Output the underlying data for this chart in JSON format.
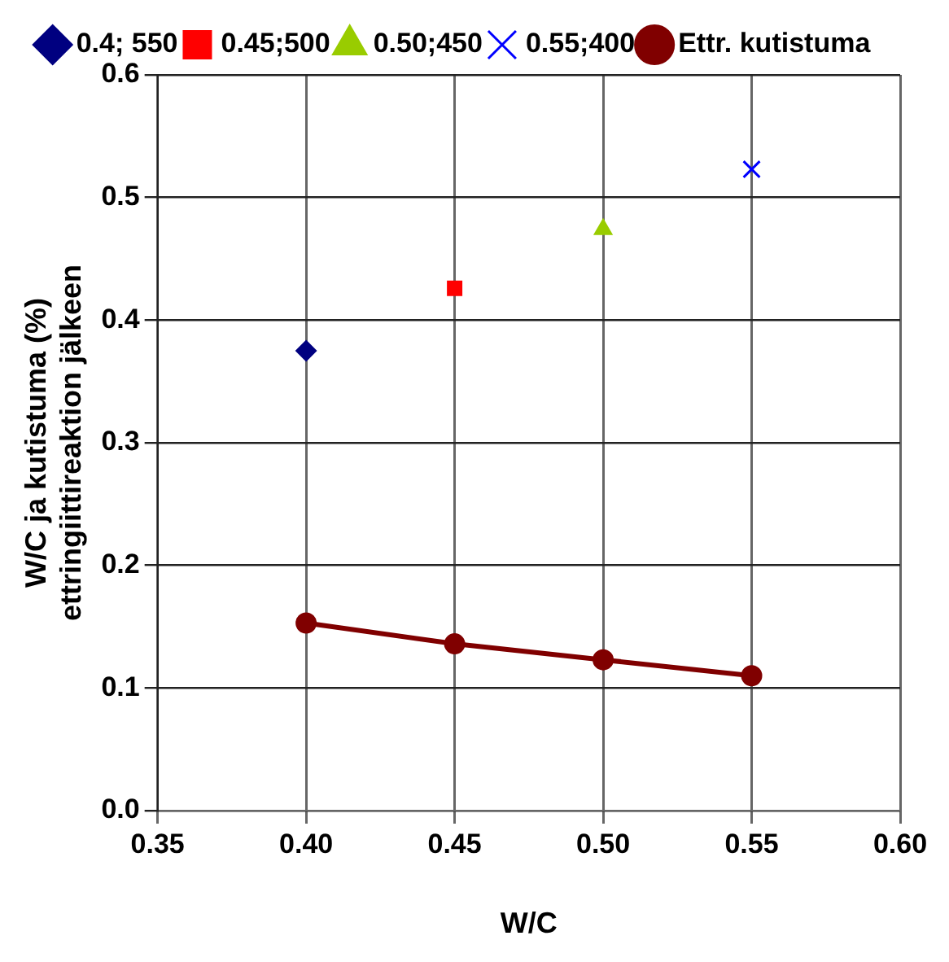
{
  "chart_data": {
    "type": "scatter",
    "xlabel": "W/C",
    "ylabel": "W/C ja kutistuma (%)\nettringiittireaktion jälkeen",
    "xlim": [
      0.35,
      0.6
    ],
    "xticks": [
      {
        "value": 0.35,
        "label": "0.35"
      },
      {
        "value": 0.4,
        "label": "0.40"
      },
      {
        "value": 0.45,
        "label": "0.45"
      },
      {
        "value": 0.5,
        "label": "0.50"
      },
      {
        "value": 0.55,
        "label": "0.55"
      },
      {
        "value": 0.6,
        "label": "0.60"
      }
    ],
    "ylim": [
      0,
      0.6
    ],
    "yticks": [
      {
        "value": 0,
        "label": "0.0"
      },
      0.1,
      0.2,
      0.3,
      0.4,
      0.5,
      0.6
    ],
    "grid": true,
    "legend": "top",
    "series": [
      {
        "name": "0.4; 550",
        "color": "#000080",
        "marker": "diamond",
        "x": [
          0.4
        ],
        "values": [
          0.375
        ]
      },
      {
        "name": "0.45;500",
        "color": "#ff0000",
        "marker": "square",
        "x": [
          0.45
        ],
        "values": [
          0.426
        ]
      },
      {
        "name": "0.50;450",
        "color": "#99cc00",
        "marker": "triangle",
        "x": [
          0.5
        ],
        "values": [
          0.474
        ]
      },
      {
        "name": "0.55;400",
        "color": "#0000ff",
        "marker": "cross",
        "x": [
          0.55
        ],
        "values": [
          0.523
        ]
      },
      {
        "name": "Ettr. kutistuma",
        "type": "line",
        "color": "#800000",
        "marker": "circle",
        "x": [
          0.4,
          0.45,
          0.5,
          0.55
        ],
        "values": [
          0.153,
          0.136,
          0.123,
          0.11
        ]
      }
    ]
  }
}
